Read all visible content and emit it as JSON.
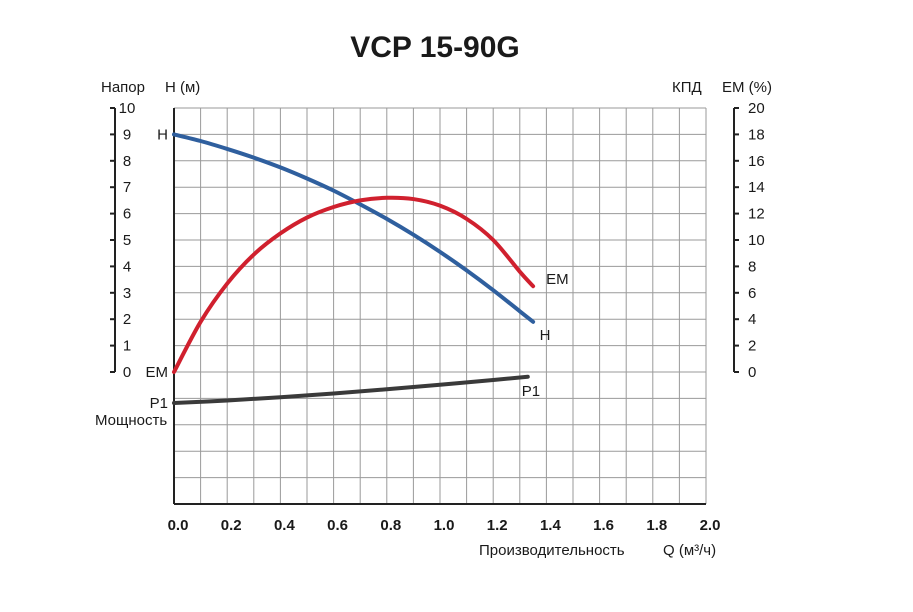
{
  "chart_data": {
    "type": "line",
    "title": "VCP 15-90G",
    "y_left_label_prefix": "Напор",
    "y_left_label": "H (м)",
    "y_right_label_prefix": "КПД",
    "y_right_label": "EM (%)",
    "x_label": "Производительность",
    "x_unit": "Q  (м³/ч)",
    "power_label": "Мощность",
    "xlim": [
      0,
      2.0
    ],
    "ylim_left": [
      0,
      10
    ],
    "ylim_right": [
      0,
      20
    ],
    "x_ticks": [
      "0.0",
      "0.2",
      "0.4",
      "0.6",
      "0.8",
      "1.0",
      "1.2",
      "1.4",
      "1.6",
      "1.8",
      "2.0"
    ],
    "y_left_ticks": [
      "0",
      "1",
      "2",
      "3",
      "4",
      "5",
      "6",
      "7",
      "8",
      "9",
      "10"
    ],
    "y_right_ticks": [
      "0",
      "2",
      "4",
      "6",
      "8",
      "10",
      "12",
      "14",
      "16",
      "18",
      "20"
    ],
    "grid": true,
    "series": [
      {
        "name": "H",
        "axis": "left",
        "color": "#2f5f9e",
        "x": [
          0.0,
          0.1,
          0.2,
          0.3,
          0.4,
          0.5,
          0.6,
          0.7,
          0.8,
          0.9,
          1.0,
          1.1,
          1.2,
          1.3,
          1.35
        ],
        "y": [
          9.0,
          8.75,
          8.45,
          8.12,
          7.75,
          7.33,
          6.87,
          6.35,
          5.8,
          5.2,
          4.55,
          3.85,
          3.1,
          2.3,
          1.9
        ]
      },
      {
        "name": "EM",
        "axis": "right",
        "color": "#d0202e",
        "x": [
          0.0,
          0.1,
          0.2,
          0.3,
          0.4,
          0.5,
          0.6,
          0.7,
          0.8,
          0.9,
          1.0,
          1.1,
          1.2,
          1.3,
          1.35
        ],
        "y": [
          0.0,
          3.8,
          6.7,
          8.9,
          10.5,
          11.7,
          12.5,
          13.0,
          13.2,
          13.1,
          12.6,
          11.6,
          10.0,
          7.6,
          6.5
        ]
      },
      {
        "name": "P1",
        "axis": "power",
        "color": "#3a3a3a",
        "x": [
          0.0,
          0.2,
          0.4,
          0.6,
          0.8,
          1.0,
          1.2,
          1.33
        ],
        "y": [
          0.0,
          0.1,
          0.23,
          0.38,
          0.55,
          0.73,
          0.92,
          1.05
        ]
      }
    ]
  }
}
